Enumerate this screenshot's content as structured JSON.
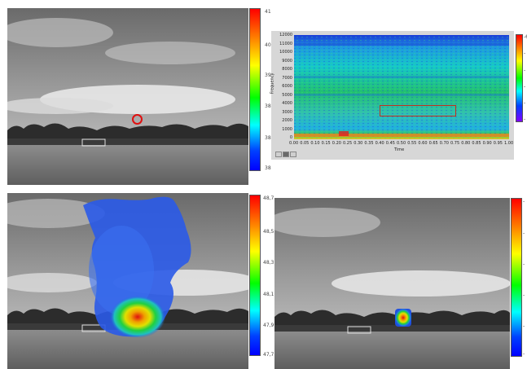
{
  "panels": {
    "top_left": {
      "colorbar": {
        "ticks": [
          "41",
          "40",
          "39",
          "38",
          "38",
          "38"
        ]
      }
    },
    "spectrogram": {
      "xlabel": "Time",
      "ylabel": "Frequency",
      "yticks": [
        "12000",
        "11000",
        "10000",
        "9000",
        "8000",
        "7000",
        "6000",
        "5000",
        "4000",
        "3000",
        "2000",
        "1000",
        "0"
      ],
      "xticks": [
        "0.00",
        "0.05",
        "0.10",
        "0.15",
        "0.20",
        "0.25",
        "0.30",
        "0.35",
        "0.40",
        "0.45",
        "0.50",
        "0.55",
        "0.60",
        "0.65",
        "0.70",
        "0.75",
        "0.80",
        "0.85",
        "0.90",
        "0.95",
        "1.00"
      ],
      "colorbar_ticks": [
        "-6",
        "-",
        "-",
        "-",
        "-",
        "-"
      ],
      "selection": {
        "time_start": 0.4,
        "time_end": 0.75,
        "freq_low": 2500,
        "freq_high": 3500
      }
    },
    "bottom_left": {
      "colorbar": {
        "ticks": [
          "48,7",
          "48,5",
          "48,3",
          "48,1",
          "47,9",
          "47,7"
        ]
      }
    },
    "bottom_right": {
      "colorbar": {
        "ticks": [
          "-",
          "-",
          "-",
          "-",
          "-",
          "-"
        ]
      }
    }
  },
  "colors": {
    "marker": "#e01010",
    "selection_box": "#c03020",
    "spectrogram_base": "#22c060"
  },
  "icons": [
    "zoom-icon",
    "pan-icon",
    "cursor-icon"
  ]
}
